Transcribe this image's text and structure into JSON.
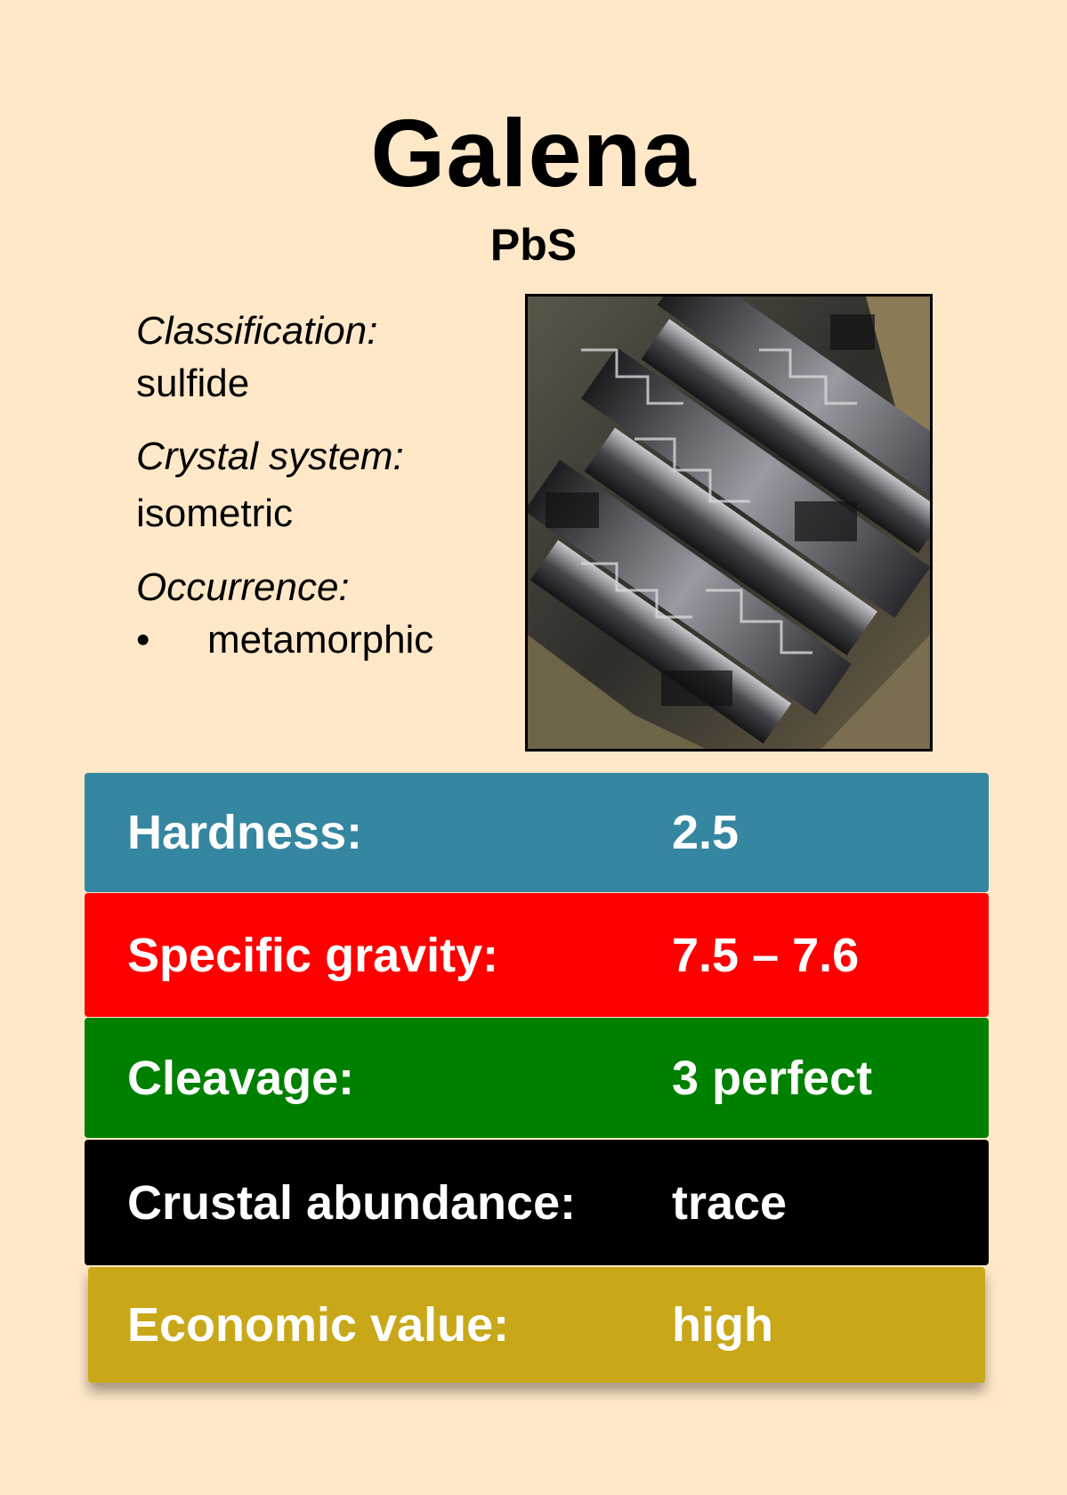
{
  "card": {
    "name": "Galena",
    "formula": "PbS"
  },
  "details": {
    "classification_label": "Classification:",
    "classification_value": "sulfide",
    "crystal_system_label": "Crystal system:",
    "crystal_system_value": "isometric",
    "occurrence_label": "Occurrence:",
    "occurrence_bullet": "•",
    "occurrence_items": [
      "metamorphic"
    ]
  },
  "image": {
    "description_icon": "galena-crystal-photo"
  },
  "properties": [
    {
      "label": "Hardness:",
      "value": "2.5",
      "color": "#3586a0"
    },
    {
      "label": "Specific gravity:",
      "value": "7.5 – 7.6",
      "color": "#ff0000"
    },
    {
      "label": "Cleavage:",
      "value": "3 perfect",
      "color": "#008000"
    },
    {
      "label": "Crustal abundance:",
      "value": "trace",
      "color": "#000000"
    },
    {
      "label": "Economic value:",
      "value": "high",
      "color": "#c8a818"
    }
  ]
}
